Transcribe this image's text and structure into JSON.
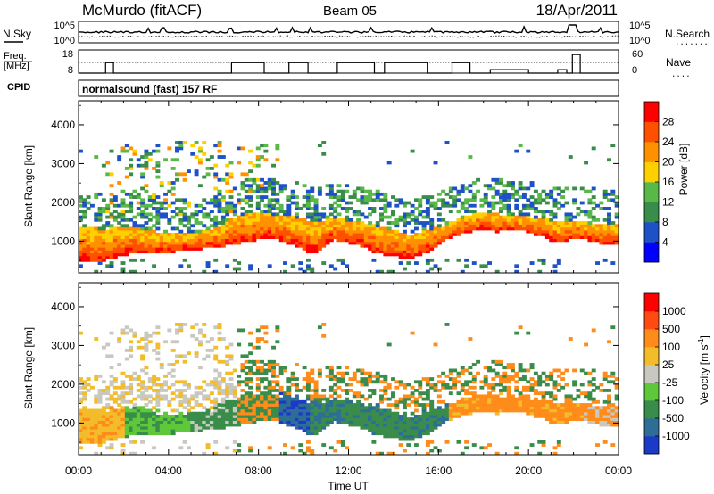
{
  "header": {
    "station": "McMurdo (fitACF)",
    "beam": "Beam 05",
    "date": "18/Apr/2011"
  },
  "summary_panels": {
    "nsky": {
      "label": "N.Sky",
      "left_ticks": [
        "10^5",
        "10^0"
      ],
      "right_label": "N.Search",
      "right_ticks": [
        "10^5",
        "10^0"
      ],
      "right_line_marker": "......."
    },
    "freq": {
      "label_lines": [
        "Freq.",
        "[MHz]"
      ],
      "left_ticks": [
        "18",
        "8"
      ],
      "right_label": "Nave",
      "right_ticks": [
        "60",
        "0"
      ],
      "right_line_marker": "....",
      "freq_steps": [
        [
          0,
          8
        ],
        [
          1.2,
          12.5
        ],
        [
          1.55,
          8
        ],
        [
          6.8,
          12.5
        ],
        [
          8.25,
          8
        ],
        [
          9.35,
          12.5
        ],
        [
          10.2,
          8
        ],
        [
          11.5,
          12.5
        ],
        [
          13.15,
          8
        ],
        [
          13.6,
          12.5
        ],
        [
          15.5,
          8
        ],
        [
          16.6,
          12.5
        ],
        [
          17.4,
          8
        ],
        [
          18.3,
          9.5
        ],
        [
          20,
          8
        ],
        [
          21.3,
          9.5
        ],
        [
          21.7,
          8
        ],
        [
          21.95,
          16
        ],
        [
          22.3,
          8
        ],
        [
          24,
          8
        ]
      ]
    },
    "cpid": {
      "label": "CPID",
      "text": "normalsound (fast) 157 RF"
    }
  },
  "chart_data": [
    {
      "type": "heatmap",
      "name": "power",
      "xlabel": "",
      "ylabel": "Slant Range [km]",
      "xlim": [
        0,
        24
      ],
      "ylim": [
        180,
        4620
      ],
      "ytick_labels": [
        "1000",
        "2000",
        "3000",
        "4000"
      ],
      "colorbar": {
        "label": "Power [dB]",
        "tick_labels": [
          "4",
          "8",
          "12",
          "16",
          "20",
          "24",
          "28"
        ],
        "range": [
          0,
          32
        ],
        "colors": [
          "#0000ff",
          "#1e50c8",
          "#3a8c4a",
          "#58b848",
          "#ffd000",
          "#ff9000",
          "#ff5000",
          "#ff0000"
        ]
      },
      "echo_band": [
        [
          0,
          500,
          1400
        ],
        [
          1.2,
          500,
          1300
        ],
        [
          2,
          650,
          1400
        ],
        [
          3,
          700,
          1300
        ],
        [
          4,
          720,
          1200
        ],
        [
          5,
          770,
          1200
        ],
        [
          6,
          850,
          1300
        ],
        [
          6.7,
          900,
          1550
        ],
        [
          7.5,
          1000,
          1750
        ],
        [
          8.5,
          1100,
          1700
        ],
        [
          9.5,
          900,
          1650
        ],
        [
          10.5,
          650,
          1500
        ],
        [
          11.3,
          1050,
          1600
        ],
        [
          12.5,
          900,
          1500
        ],
        [
          13.2,
          700,
          1400
        ],
        [
          14,
          600,
          1300
        ],
        [
          14.8,
          550,
          1150
        ],
        [
          15.5,
          700,
          1300
        ],
        [
          16.2,
          1000,
          1400
        ],
        [
          17,
          1200,
          1600
        ],
        [
          17.8,
          1300,
          1750
        ],
        [
          18.6,
          1250,
          1700
        ],
        [
          19.5,
          1300,
          1650
        ],
        [
          20.5,
          1150,
          1600
        ],
        [
          21.2,
          950,
          1500
        ],
        [
          22.2,
          1100,
          1500
        ],
        [
          23.2,
          950,
          1450
        ],
        [
          24,
          950,
          1400
        ]
      ]
    },
    {
      "type": "heatmap",
      "name": "velocity",
      "xlabel": "Time UT",
      "ylabel": "Slant Range [km]",
      "xlim": [
        0,
        24
      ],
      "ylim": [
        180,
        4620
      ],
      "xtick_labels": [
        "00:00",
        "04:00",
        "08:00",
        "12:00",
        "16:00",
        "20:00",
        "00:00"
      ],
      "ytick_labels": [
        "1000",
        "2000",
        "3000",
        "4000"
      ],
      "colorbar": {
        "label": "Velocity [m s",
        "label_sup": "-1",
        "label_end": "]",
        "tick_labels": [
          "1000",
          "500",
          "100",
          "25",
          "-25",
          "-100",
          "-500",
          "-1000"
        ],
        "colors": [
          "#1c3ac8",
          "#2e6e96",
          "#3a8c4a",
          "#5ec83a",
          "#c8c8c0",
          "#f2bc2a",
          "#ff8c1a",
          "#ff4a12",
          "#ff0000"
        ]
      }
    }
  ]
}
